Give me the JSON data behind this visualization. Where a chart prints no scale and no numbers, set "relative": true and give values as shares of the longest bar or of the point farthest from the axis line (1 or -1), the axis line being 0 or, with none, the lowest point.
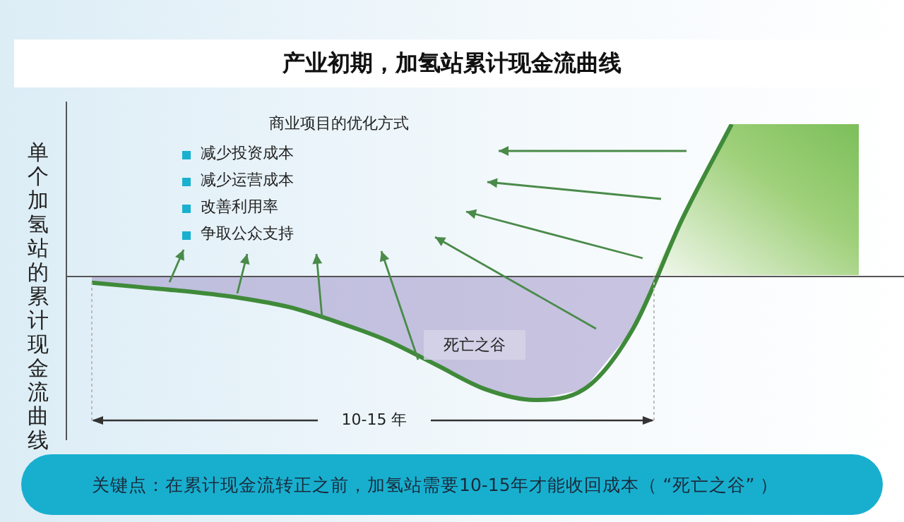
{
  "chart_data": {
    "type": "line",
    "relative": true,
    "title": "产业初期，加氢站累计现金流曲线",
    "ylabel": "单个加氢站的累计现金流曲线",
    "categories": [
      null,
      null,
      null,
      null,
      null,
      null,
      null,
      null,
      null,
      null,
      null,
      null,
      null,
      null
    ],
    "series": [
      {
        "color": "#3f8a3a",
        "values": [
          -0.04,
          -0.07,
          -0.1,
          -0.14,
          -0.2,
          -0.3,
          -0.42,
          -0.58,
          -0.74,
          -0.81,
          -0.74,
          -0.34,
          0.38,
          1
        ]
      }
    ],
    "annotations": [
      "商业项目的优化方式",
      "减少投资成本",
      "减少运营成本",
      "改善利用率",
      "争取公众支持",
      "死亡之谷",
      "10-15 年",
      "关键点：在累计现金流转正之前，加氢站需要10-15年才能收回成本（ “死亡之谷” ）"
    ],
    "legend": false,
    "marker": "none"
  }
}
